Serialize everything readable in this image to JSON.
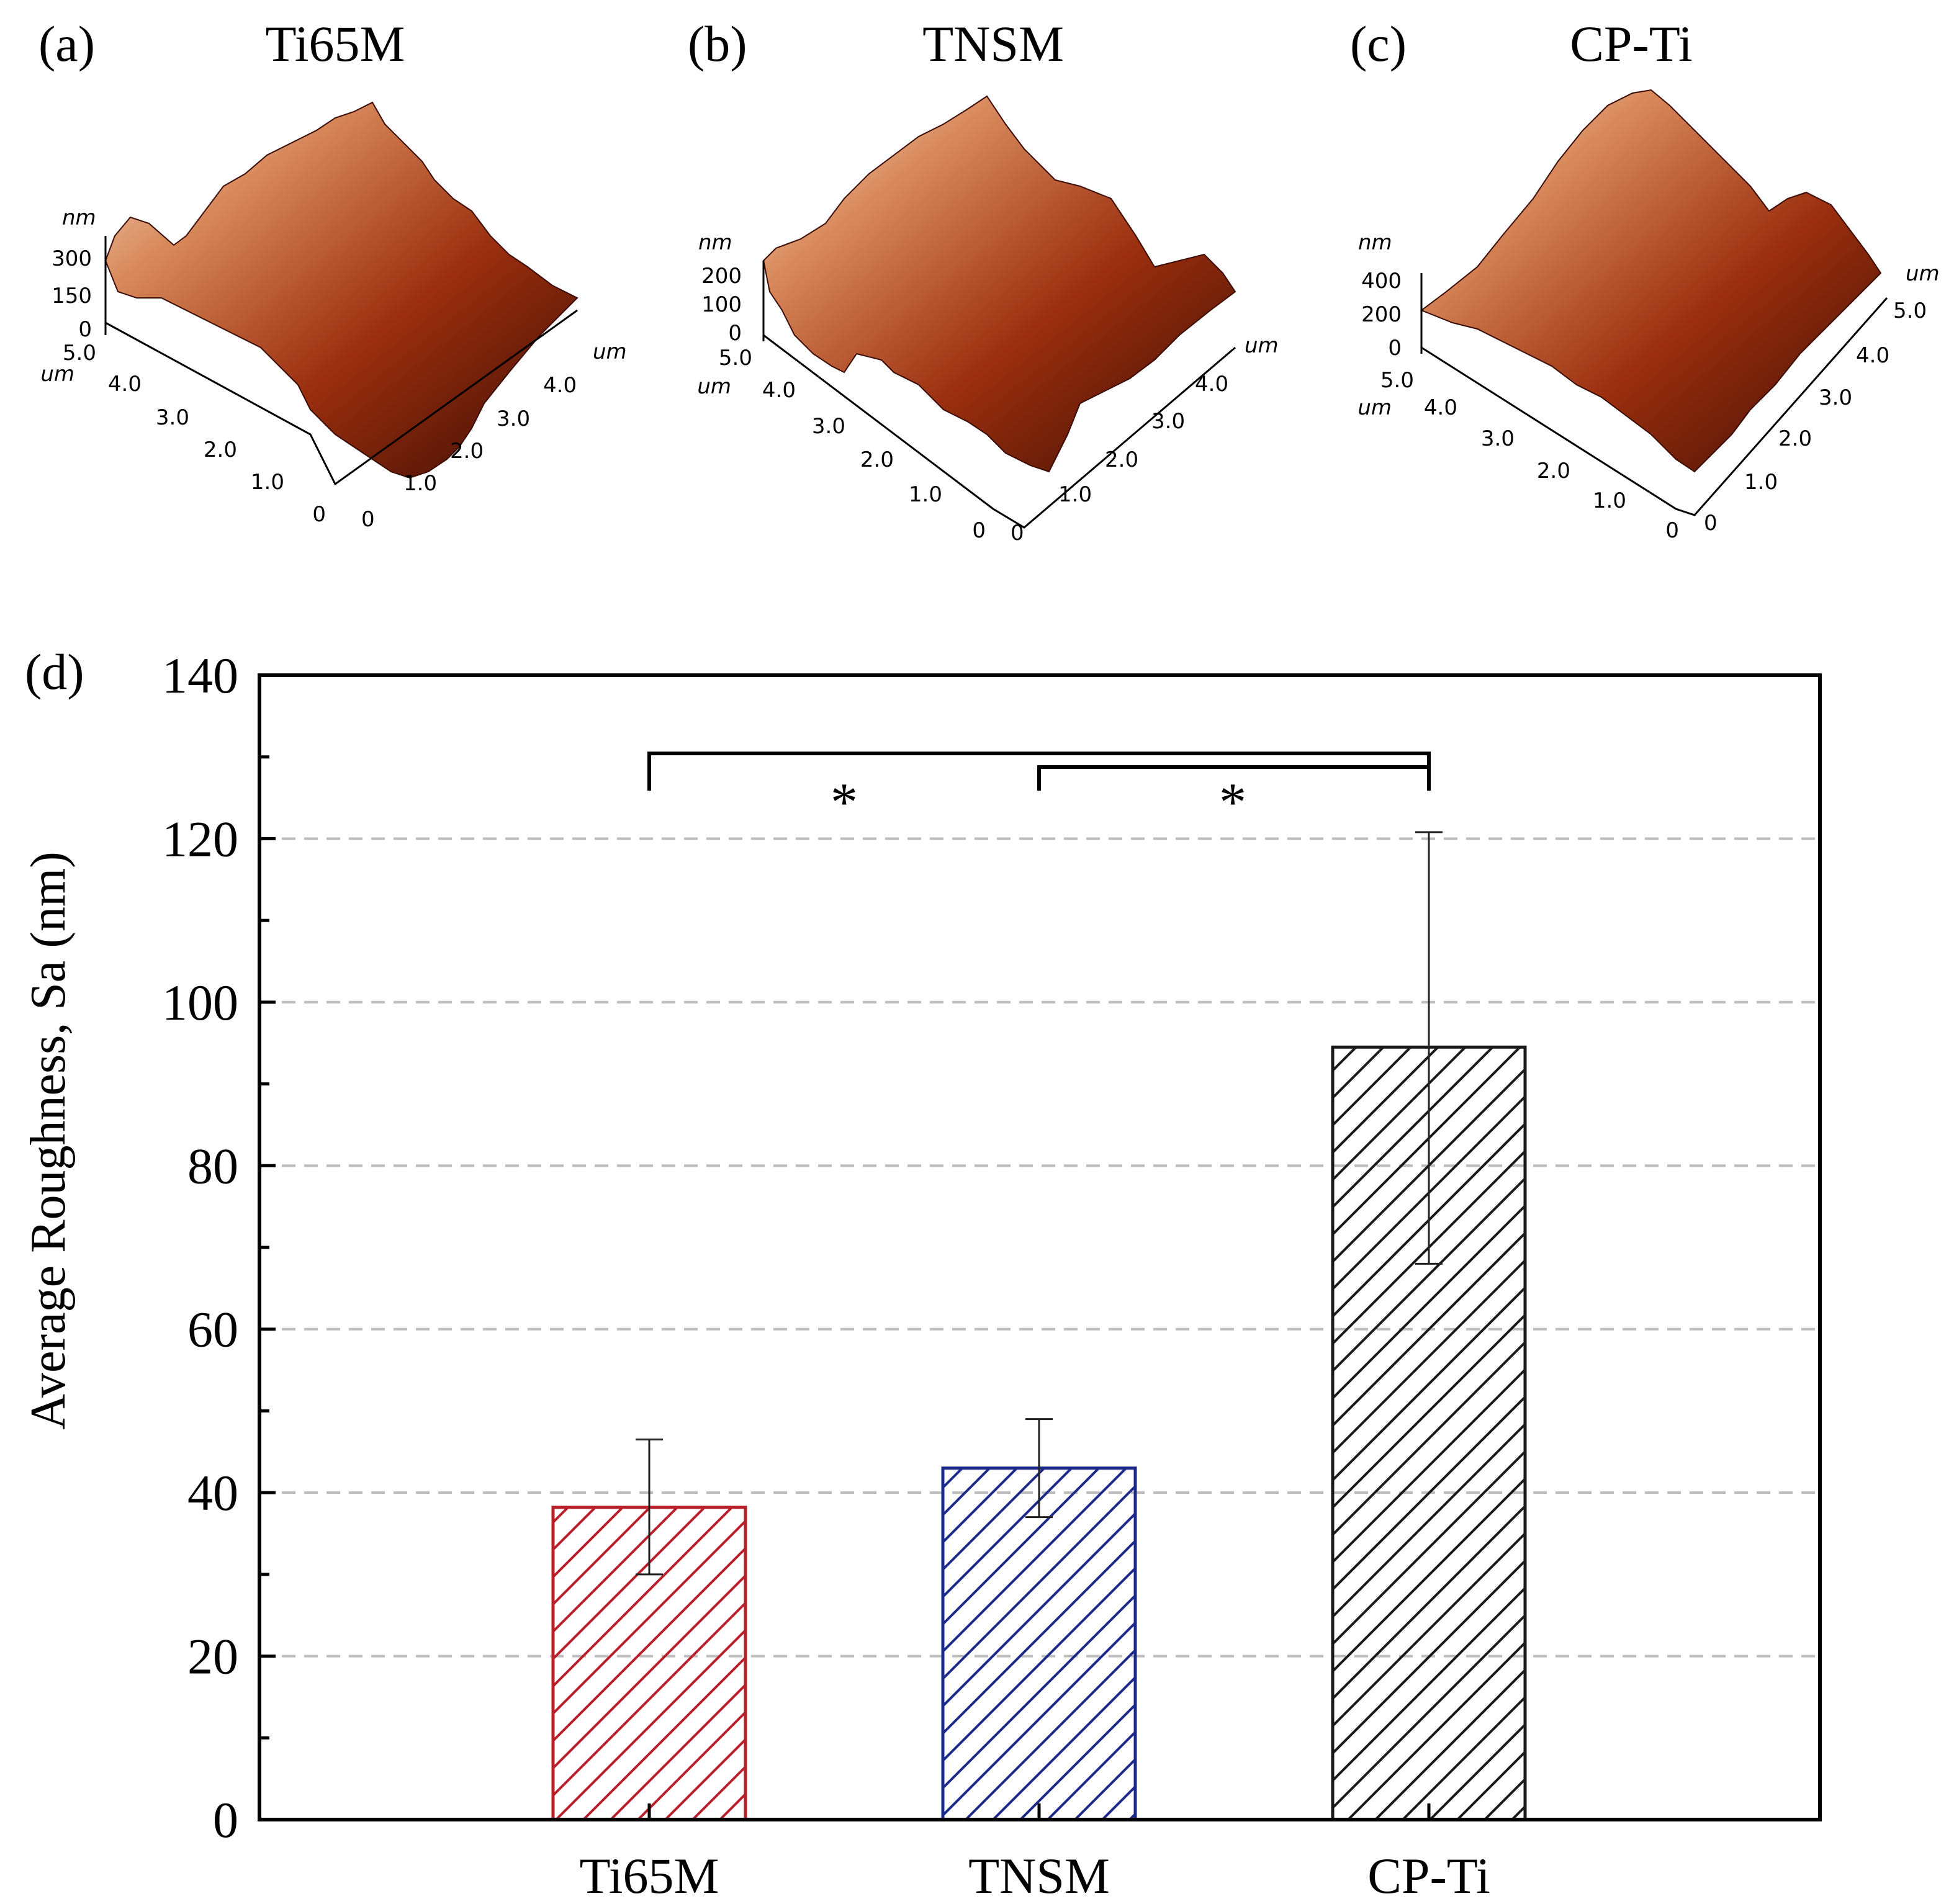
{
  "colors": {
    "ti65m": "#b8202a",
    "tnsm": "#1c2a8a",
    "cpti": "#1a1a1a",
    "grid": "#bdbdbd",
    "axis": "#000000",
    "afm_dark": "#3a0c04",
    "afm_mid": "#9a2e0e",
    "afm_light": "#d98a5c",
    "afm_peak": "#f1dcc8"
  },
  "afm_panels": [
    {
      "letter": "(a)",
      "title": "Ti65M",
      "z_unit": "nm",
      "z_ticks": [
        "300",
        "150",
        "0"
      ],
      "left_unit": "um",
      "left_ticks": [
        "5.0",
        "4.0",
        "3.0",
        "2.0",
        "1.0",
        "0"
      ],
      "right_unit": "um",
      "right_ticks": [
        "0",
        "1.0",
        "2.0",
        "3.0",
        "4.0"
      ]
    },
    {
      "letter": "(b)",
      "title": "TNSM",
      "z_unit": "nm",
      "z_ticks": [
        "200",
        "100",
        "0"
      ],
      "left_unit": "um",
      "left_ticks": [
        "5.0",
        "4.0",
        "3.0",
        "2.0",
        "1.0",
        "0"
      ],
      "right_unit": "um",
      "right_ticks": [
        "0",
        "1.0",
        "2.0",
        "3.0",
        "4.0"
      ]
    },
    {
      "letter": "(c)",
      "title": "CP-Ti",
      "z_unit": "nm",
      "z_ticks": [
        "400",
        "200",
        "0"
      ],
      "left_unit": "um",
      "left_ticks": [
        "5.0",
        "4.0",
        "3.0",
        "2.0",
        "1.0",
        "0"
      ],
      "right_unit": "um",
      "right_ticks": [
        "0",
        "1.0",
        "2.0",
        "3.0",
        "4.0",
        "5.0"
      ]
    }
  ],
  "chart_data": {
    "type": "bar",
    "panel_letter": "(d)",
    "title": "",
    "xlabel": "",
    "ylabel": "Average Roughness, Sa (nm)",
    "categories": [
      "Ti65M",
      "TNSM",
      "CP-Ti"
    ],
    "values": [
      38.2,
      43.0,
      94.5
    ],
    "error_low": [
      30.0,
      37.0,
      68.0
    ],
    "error_high": [
      46.5,
      49.0,
      120.8
    ],
    "hatch": "diagonal",
    "ylim": [
      0,
      140
    ],
    "yticks": [
      "0",
      "20",
      "40",
      "60",
      "80",
      "100",
      "120",
      "140"
    ],
    "grid": "dashed horizontal",
    "significance": [
      {
        "from": "Ti65M",
        "to": "CP-Ti",
        "label": "*"
      },
      {
        "from": "TNSM",
        "to": "CP-Ti",
        "label": "*"
      }
    ]
  }
}
